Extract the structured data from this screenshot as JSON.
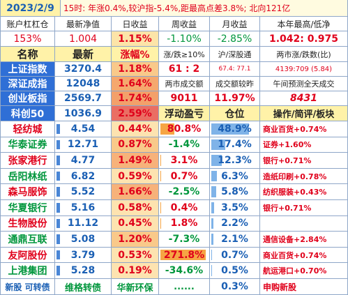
{
  "top": {
    "date": "2023/2/9",
    "summary": "15时: 年涨0.4%,较沪指-5.4%,距最高点差3.8%; 北向121亿"
  },
  "account_header": [
    "账户杠杠仓",
    "最新净值",
    "日收益",
    "周收益",
    "月收益",
    "本年最高/低净"
  ],
  "account_values": [
    "153%",
    "1.004",
    "1.15%",
    "-1.10%",
    "-2.85%",
    "1.042: 0.975"
  ],
  "index_header": [
    "名称",
    "最新",
    "涨幅%",
    "涨/跌≥10%",
    "沪/深股通",
    "两市涨/跌数(比)"
  ],
  "indices": [
    {
      "name": "上证指数",
      "last": "3270.4",
      "pct": "1.18%",
      "c3": "61 : 2",
      "c4": "67.4: 77.1",
      "c5": "4139:709 (5.84)"
    },
    {
      "name": "深证成指",
      "last": "12048",
      "pct": "1.64%",
      "c3": "两市成交额",
      "c4": "成交额较昨",
      "c5": "午间预测全天成交"
    },
    {
      "name": "创业板指",
      "last": "2569.7",
      "pct": "1.74%",
      "c3": "9011",
      "c4": "11.97%",
      "c5": "8431"
    },
    {
      "name": "科创50",
      "last": "1036.9",
      "pct": "2.59%",
      "c3": "浮动盈亏",
      "c4": "仓位",
      "c5": "操作/简评/板块"
    }
  ],
  "stocks": [
    {
      "name": "轻纺城",
      "last": "4.54",
      "pct": "0.44%",
      "pnl": "80.8%",
      "pos": "48.9%",
      "note": "商业百货+0.74%",
      "pnl_frac": 0.3,
      "pos_frac": 0.8,
      "pct_frac": 0.2
    },
    {
      "name": "华泰证券",
      "last": "12.71",
      "pct": "0.87%",
      "pnl": "-1.4%",
      "pos": "17.4%",
      "note": "证券+1.60%",
      "pnl_frac": 0,
      "pos_frac": 0.3,
      "pct_frac": 0.35
    },
    {
      "name": "张家港行",
      "last": "4.77",
      "pct": "1.49%",
      "pnl": "3.1%",
      "pos": "12.3%",
      "note": "银行+0.71%",
      "pnl_frac": 0.02,
      "pos_frac": 0.22,
      "pct_frac": 0.55
    },
    {
      "name": "岳阳林纸",
      "last": "6.82",
      "pct": "0.59%",
      "pnl": "0.7%",
      "pos": "6.3%",
      "note": "造纸印刷+0.78%",
      "pnl_frac": 0.01,
      "pos_frac": 0.12,
      "pct_frac": 0.25
    },
    {
      "name": "森马服饰",
      "last": "5.52",
      "pct": "1.66%",
      "pnl": "-2.5%",
      "pos": "5.8%",
      "note": "纺织服装+0.43%",
      "pnl_frac": 0,
      "pos_frac": 0.1,
      "pct_frac": 0.6
    },
    {
      "name": "华夏银行",
      "last": "5.16",
      "pct": "0.58%",
      "pnl": "0.4%",
      "pos": "3.5%",
      "note": "银行+0.71%",
      "pnl_frac": 0.01,
      "pos_frac": 0.06,
      "pct_frac": 0.25
    },
    {
      "name": "生物股份",
      "last": "11.12",
      "pct": "0.45%",
      "pnl": "1.8%",
      "pos": "2.2%",
      "note": "",
      "pnl_frac": 0.01,
      "pos_frac": 0.04,
      "pct_frac": 0.2
    },
    {
      "name": "通鼎互联",
      "last": "5.08",
      "pct": "1.20%",
      "pnl": "-7.3%",
      "pos": "2.1%",
      "note": "通信设备+2.84%",
      "pnl_frac": 0,
      "pos_frac": 0.04,
      "pct_frac": 0.45
    },
    {
      "name": "友阿股份",
      "last": "3.79",
      "pct": "0.53%",
      "pnl": "271.8%",
      "pos": "0.7%",
      "note": "商业百货+0.74%",
      "pnl_frac": 0.95,
      "pos_frac": 0.02,
      "pct_frac": 0.22
    },
    {
      "name": "上港集团",
      "last": "5.28",
      "pct": "0.19%",
      "pnl": "-34.6%",
      "pos": "0.5%",
      "note": "航运港口+0.70%",
      "pnl_frac": 0,
      "pos_frac": 0.01,
      "pct_frac": 0.08
    }
  ],
  "footer": [
    "新股 可转债",
    "维格转债",
    "华新环保",
    "......",
    "0.3%",
    "申购新股"
  ]
}
